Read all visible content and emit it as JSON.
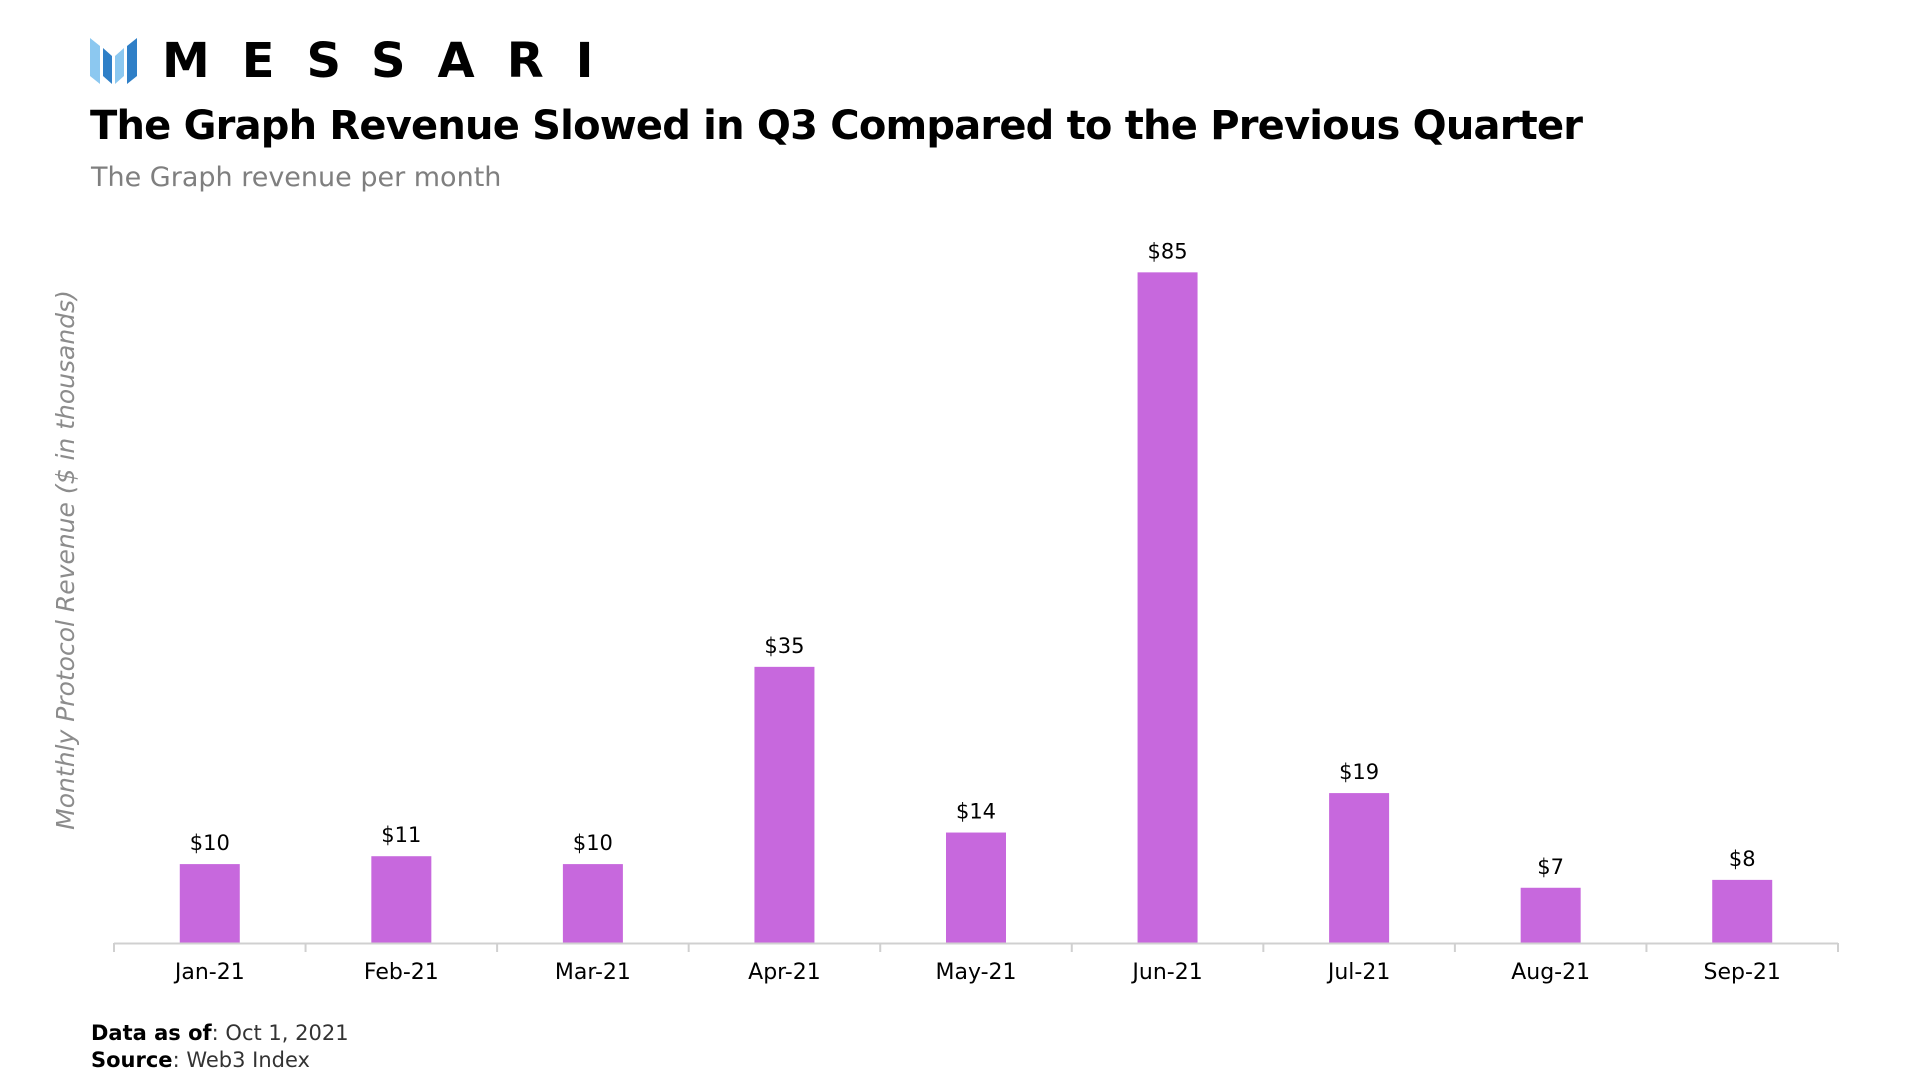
{
  "brand": {
    "name": "MESSARI",
    "colors": {
      "logo_light": "#8cc8f0",
      "logo_dark": "#2f7fc7"
    }
  },
  "chart_data": {
    "type": "bar",
    "title": "The Graph Revenue Slowed in Q3 Compared to the Previous Quarter",
    "subtitle": "The Graph revenue per month",
    "ylabel": "Monthly Protocol Revenue ($ in thousands)",
    "xlabel": "",
    "categories": [
      "Jan-21",
      "Feb-21",
      "Mar-21",
      "Apr-21",
      "May-21",
      "Jun-21",
      "Jul-21",
      "Aug-21",
      "Sep-21"
    ],
    "values": [
      10,
      11,
      10,
      35,
      14,
      85,
      19,
      7,
      8
    ],
    "data_labels": [
      "$10",
      "$11",
      "$10",
      "$35",
      "$14",
      "$85",
      "$19",
      "$7",
      "$8"
    ],
    "ylim": [
      0,
      90
    ],
    "grid": false,
    "bar_color": "#c768dd",
    "axis_color": "#d0d0d0"
  },
  "footer": {
    "data_as_of_label": "Data as of",
    "data_as_of_value": ": Oct 1, 2021",
    "source_label": "Source",
    "source_value": ": Web3 Index"
  }
}
